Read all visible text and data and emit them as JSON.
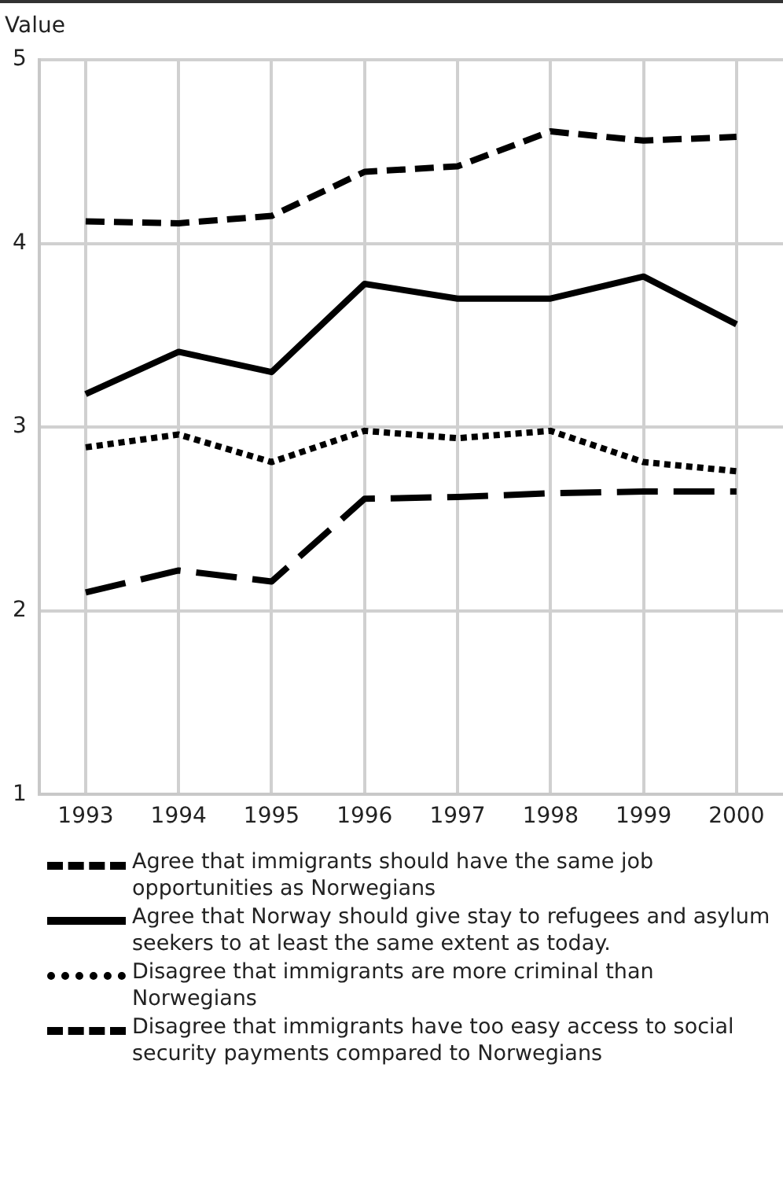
{
  "chart_data": {
    "type": "line",
    "ylabel": "Value",
    "categories": [
      "1993",
      "1994",
      "1995",
      "1996",
      "1997",
      "1998",
      "1999",
      "2000"
    ],
    "ylim": [
      1,
      5
    ],
    "yticks": [
      1,
      2,
      3,
      4,
      5
    ],
    "grid": true,
    "legend": "bottom",
    "marker": "none",
    "series": [
      {
        "name": "Agree that immigrants should have the same job opportunities as Norwegians",
        "color": "#000000",
        "line_style": "dashed",
        "values": [
          4.12,
          4.11,
          4.15,
          4.39,
          4.42,
          4.61,
          4.56,
          4.58
        ]
      },
      {
        "name": "Agree that Norway should give stay to refugees and asylum seekers to at least the same extent as today.",
        "color": "#000000",
        "line_style": "solid",
        "values": [
          3.18,
          3.41,
          3.3,
          3.78,
          3.7,
          3.7,
          3.82,
          3.56
        ]
      },
      {
        "name": "Disagree that immigrants are more criminal than Norwegians",
        "color": "#000000",
        "line_style": "dotted",
        "values": [
          2.89,
          2.96,
          2.81,
          2.98,
          2.94,
          2.98,
          2.81,
          2.76
        ]
      },
      {
        "name": "Disagree that immigrants have too easy access to social security payments compared to Norwegians",
        "color": "#000000",
        "line_style": "dashed",
        "values": [
          2.1,
          2.22,
          2.16,
          2.61,
          2.62,
          2.64,
          2.65,
          2.65
        ]
      }
    ]
  }
}
